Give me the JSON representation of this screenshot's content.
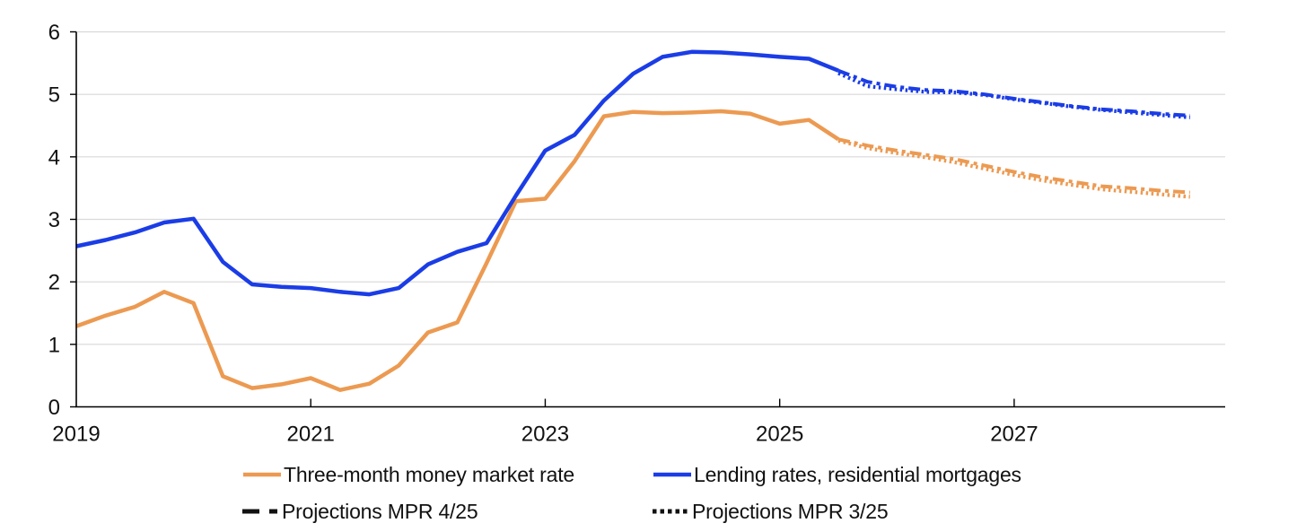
{
  "chart_data": {
    "type": "line",
    "title": "",
    "xlabel": "",
    "ylabel": "",
    "xlim": [
      2019,
      2028.8
    ],
    "ylim": [
      0,
      6
    ],
    "grid": "horizontal-on",
    "legend_position": "bottom",
    "y_ticks": [
      0,
      1,
      2,
      3,
      4,
      5,
      6
    ],
    "x_ticks": [
      {
        "t": 2019,
        "label": "2019",
        "mark": false
      },
      {
        "t": 2021,
        "label": "2021",
        "mark": true
      },
      {
        "t": 2023,
        "label": "2023",
        "mark": true
      },
      {
        "t": 2025,
        "label": "2025",
        "mark": true
      },
      {
        "t": 2027,
        "label": "2027",
        "mark": true
      }
    ],
    "x_unit": "quarterly, fractional years (step 0.25)",
    "series": [
      {
        "name": "Projections MPR 3/25 (money market rate)",
        "style": "dotted",
        "color": "#EC9A52",
        "start": 2025.5,
        "step": 0.25,
        "values": [
          4.26,
          4.14,
          4.06,
          3.99,
          3.91,
          3.81,
          3.71,
          3.62,
          3.55,
          3.48,
          3.44,
          3.4,
          3.36
        ]
      },
      {
        "name": "Projections MPR 3/25 (lending rates)",
        "style": "dotted",
        "color": "#1B3DE6",
        "start": 2025.5,
        "step": 0.25,
        "values": [
          5.34,
          5.13,
          5.08,
          5.04,
          5.03,
          4.99,
          4.92,
          4.86,
          4.8,
          4.75,
          4.71,
          4.67,
          4.63
        ]
      },
      {
        "name": "Projections MPR 4/25 (money market rate)",
        "style": "dashdot",
        "color": "#EC9A52",
        "start": 2025.5,
        "step": 0.25,
        "values": [
          4.28,
          4.18,
          4.1,
          4.03,
          3.96,
          3.86,
          3.76,
          3.67,
          3.6,
          3.53,
          3.5,
          3.46,
          3.43
        ]
      },
      {
        "name": "Projections MPR 4/25 (lending rates)",
        "style": "dashdot",
        "color": "#1B3DE6",
        "start": 2025.5,
        "step": 0.25,
        "values": [
          5.38,
          5.2,
          5.12,
          5.07,
          5.05,
          5.0,
          4.93,
          4.87,
          4.81,
          4.76,
          4.73,
          4.69,
          4.66
        ]
      },
      {
        "name": "Three-month money market rate",
        "style": "solid",
        "color": "#EC9A52",
        "start": 2019.0,
        "step": 0.25,
        "values": [
          1.29,
          1.46,
          1.6,
          1.84,
          1.66,
          0.49,
          0.3,
          0.36,
          0.46,
          0.27,
          0.37,
          0.66,
          1.19,
          1.35,
          2.3,
          3.29,
          3.33,
          3.93,
          4.65,
          4.72,
          4.7,
          4.71,
          4.73,
          4.69,
          4.53,
          4.59,
          4.28
        ]
      },
      {
        "name": "Lending rates, residential mortgages",
        "style": "solid",
        "color": "#1B3DE6",
        "start": 2019.0,
        "step": 0.25,
        "values": [
          2.57,
          2.67,
          2.79,
          2.95,
          3.01,
          2.32,
          1.96,
          1.92,
          1.9,
          1.84,
          1.8,
          1.9,
          2.28,
          2.48,
          2.62,
          3.38,
          4.1,
          4.35,
          4.9,
          5.33,
          5.6,
          5.68,
          5.67,
          5.64,
          5.6,
          5.57,
          5.38
        ]
      }
    ]
  },
  "legend": {
    "items": [
      {
        "label": "Three-month money market rate",
        "swatch": "solid",
        "color": "#EC9A52"
      },
      {
        "label": "Lending rates, residential mortgages",
        "swatch": "solid",
        "color": "#1B3DE6"
      },
      {
        "label": "Projections MPR 4/25",
        "swatch": "dashdot",
        "color": "#111111"
      },
      {
        "label": "Projections MPR 3/25",
        "swatch": "dotted",
        "color": "#111111"
      }
    ]
  },
  "colors": {
    "orange": "#EC9A52",
    "blue": "#1B3DE6",
    "gridline": "#D9D9D9",
    "axis": "#000000",
    "text": "#111111",
    "background": "#FFFFFF"
  }
}
